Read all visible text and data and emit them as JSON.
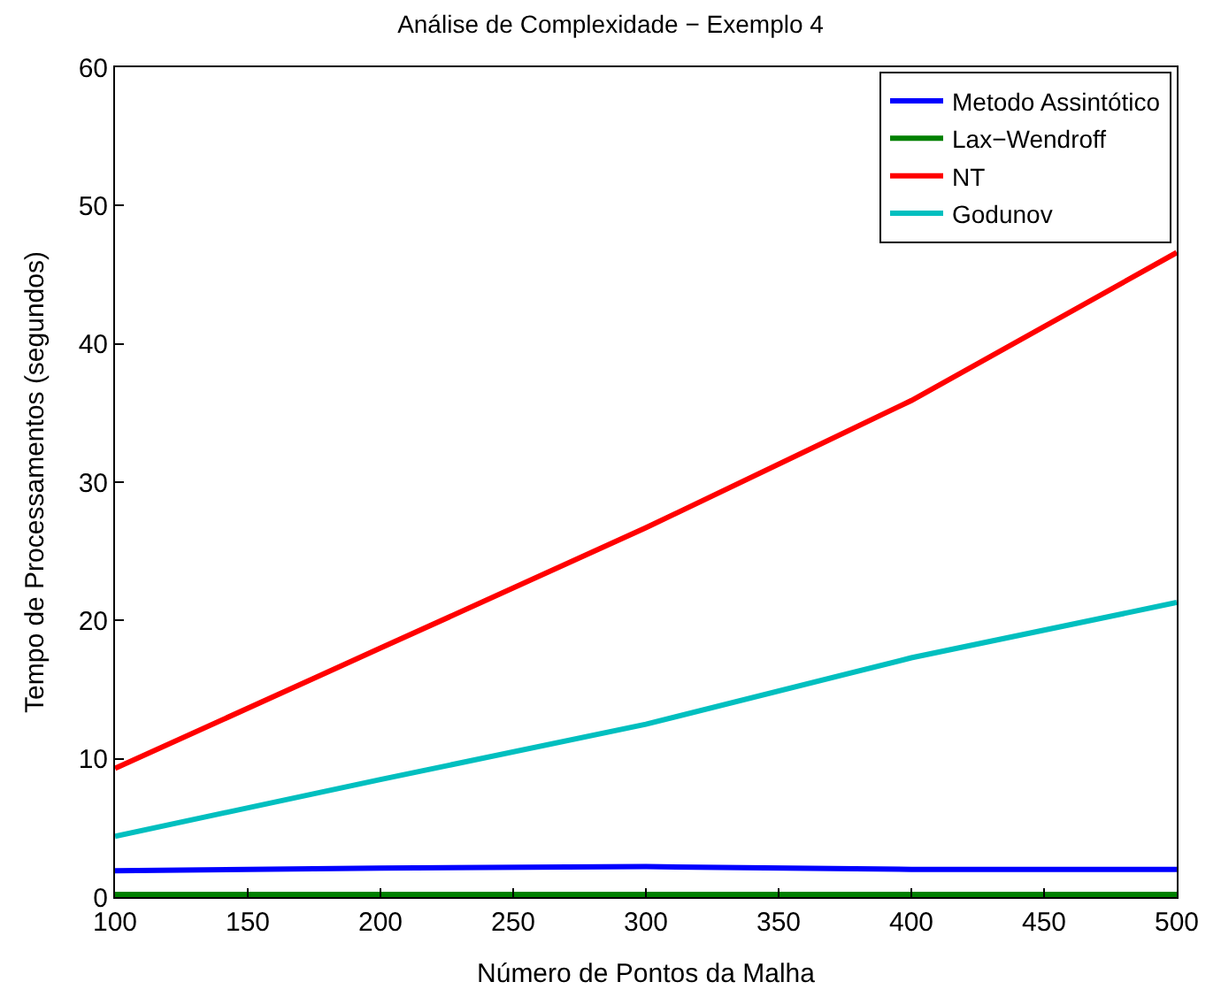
{
  "chart_data": {
    "type": "line",
    "title": "Análise de Complexidade − Exemplo 4",
    "xlabel": "Número de Pontos da Malha",
    "ylabel": "Tempo de Processamentos (segundos)",
    "x": [
      100,
      200,
      300,
      400,
      500
    ],
    "series": [
      {
        "name": "Metodo Assintótico",
        "color": "#0000ff",
        "values": [
          1.9,
          2.1,
          2.2,
          2.0,
          2.0
        ]
      },
      {
        "name": "Lax−Wendroff",
        "color": "#008000",
        "values": [
          0.2,
          0.2,
          0.2,
          0.2,
          0.2
        ]
      },
      {
        "name": "NT",
        "color": "#ff0000",
        "values": [
          9.3,
          18.0,
          26.7,
          35.9,
          46.6
        ]
      },
      {
        "name": "Godunov",
        "color": "#00bfbf",
        "values": [
          4.4,
          8.5,
          12.5,
          17.3,
          21.3
        ]
      }
    ],
    "xlim": [
      100,
      500
    ],
    "xticks": [
      100,
      150,
      200,
      250,
      300,
      350,
      400,
      450,
      500
    ],
    "ylim": [
      0,
      60
    ],
    "yticks": [
      0,
      10,
      20,
      30,
      40,
      50,
      60
    ],
    "legend": "top right",
    "marker": "none",
    "line_style": "solid"
  }
}
